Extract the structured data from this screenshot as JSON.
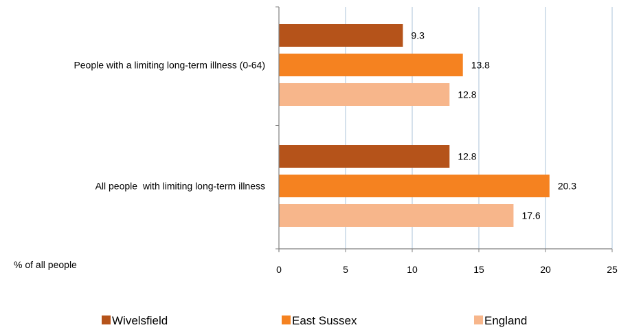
{
  "chart_data": {
    "type": "bar",
    "orientation": "horizontal",
    "categories": [
      "People with a limiting long-term illness (0-64)",
      "All people  with limiting long-term illness"
    ],
    "series": [
      {
        "name": "Wivelsfield",
        "color": "#b5531a",
        "values": [
          9.3,
          12.8
        ]
      },
      {
        "name": "East Sussex",
        "color": "#f58220",
        "values": [
          13.8,
          20.3
        ]
      },
      {
        "name": "England",
        "color": "#f7b68b",
        "values": [
          12.8,
          17.6
        ]
      }
    ],
    "xlabel": "% of all people",
    "xlim": [
      0,
      25
    ],
    "xticks": [
      0,
      5,
      10,
      15,
      20,
      25
    ],
    "grid": true,
    "legend_position": "bottom"
  }
}
